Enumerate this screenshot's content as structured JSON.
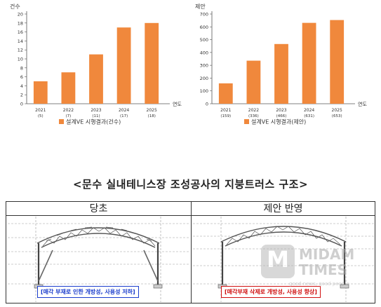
{
  "chart_data": [
    {
      "type": "bar",
      "ylabel": "건수",
      "xlabel": "연도",
      "categories": [
        "2021",
        "2022",
        "2023",
        "2024",
        "2025"
      ],
      "category_sublabels": [
        "(5)",
        "(7)",
        "(11)",
        "(17)",
        "(18)"
      ],
      "values": [
        5,
        7,
        11,
        17,
        18
      ],
      "ylim": [
        0,
        20
      ],
      "yticks": [
        "0",
        "2",
        "4",
        "6",
        "8",
        "10",
        "12",
        "14",
        "16",
        "18",
        "20"
      ],
      "legend": "설계VE 시행결과(건수)",
      "color": "#f0883c"
    },
    {
      "type": "bar",
      "ylabel": "제안",
      "xlabel": "연도",
      "categories": [
        "2021",
        "2022",
        "2023",
        "2024",
        "2025"
      ],
      "category_sublabels": [
        "(159)",
        "(336)",
        "(466)",
        "(631)",
        "(653)"
      ],
      "values": [
        159,
        336,
        466,
        631,
        653
      ],
      "ylim": [
        0,
        700
      ],
      "yticks": [
        "0",
        "100",
        "200",
        "300",
        "400",
        "500",
        "600",
        "700"
      ],
      "legend": "설계VE 시행결과(제안)",
      "color": "#f0883c"
    }
  ],
  "caption": "<문수 실내테니스장 조성공사의 지붕트러스 구조>",
  "table": {
    "left_header": "당초",
    "right_header": "제안 반영",
    "left_note": "[매각 부재로 인한 개방성, 사용성 저하]",
    "right_note": "[매각부재 삭제로 개방성, 사용성 향상]",
    "left_note_color": "#1a3ccc",
    "right_note_color": "#d01010"
  },
  "watermark": {
    "line1": "MIDAM",
    "line2": "TIMES",
    "sub": "good news, good people"
  }
}
